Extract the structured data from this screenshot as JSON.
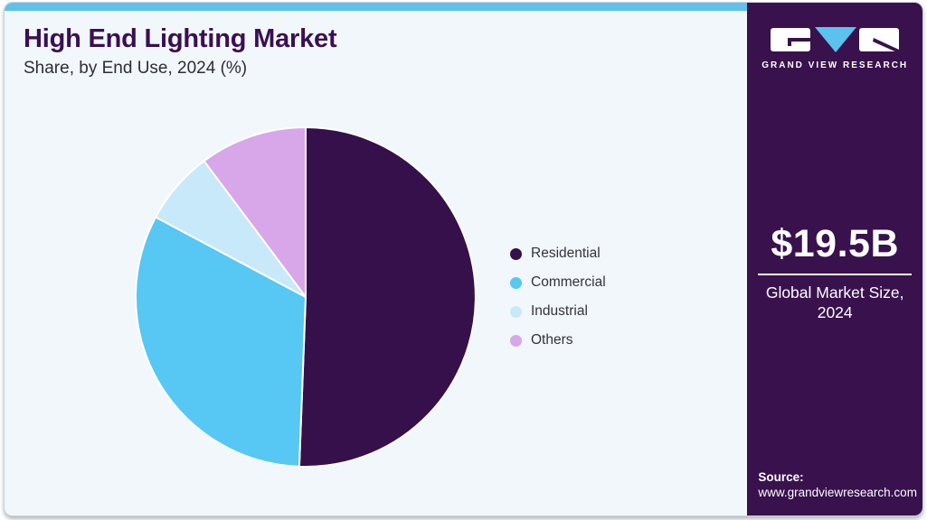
{
  "header": {
    "title": "High End Lighting Market",
    "subtitle": "Share, by End Use, 2024 (%)"
  },
  "chart_data": {
    "type": "pie",
    "title": "High End Lighting Market Share, by End Use, 2024 (%)",
    "categories": [
      "Residential",
      "Commercial",
      "Industrial",
      "Others"
    ],
    "values": [
      50.6,
      32.2,
      7.0,
      10.2
    ],
    "units": "%",
    "colors": [
      "#36104a",
      "#57c7f4",
      "#c7e9fa",
      "#d7a7ea"
    ],
    "start_angle_deg": -90,
    "direction": "clockwise",
    "legend_position": "right",
    "slice_separator_color": "#ffffff"
  },
  "sidebar": {
    "brand": "GRAND VIEW RESEARCH",
    "logo_icon": "gvr-logo",
    "market_size_value": "$19.5B",
    "market_size_caption_line1": "Global Market Size,",
    "market_size_caption_line2": "2024",
    "source_label": "Source:",
    "source_url": "www.grandviewresearch.com",
    "background_color": "#38114d"
  },
  "colors": {
    "topbar": "#5fc1ec",
    "card_background": "#f1f7fa",
    "title_color": "#3a0f53",
    "body_text": "#34333d"
  }
}
